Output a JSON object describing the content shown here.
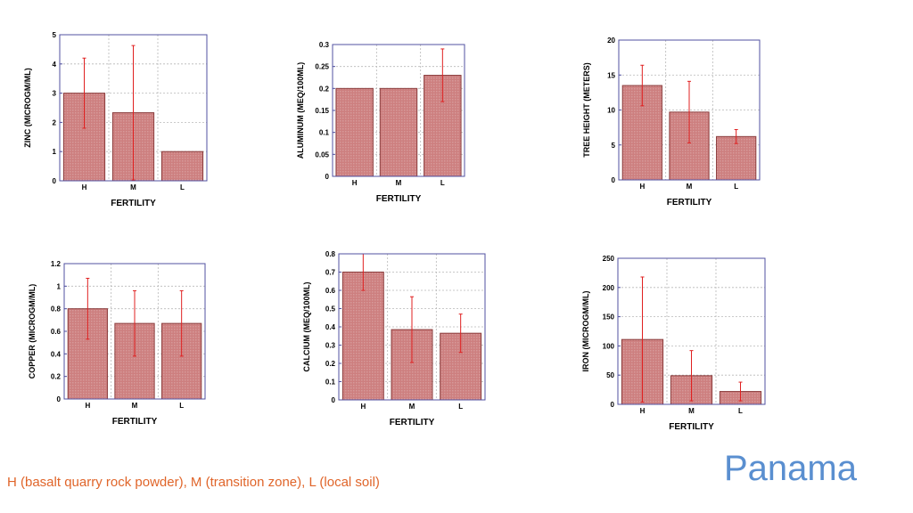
{
  "footnote": "H (basalt quarry rock powder), M (transition zone), L (local soil)",
  "brand": "Panama",
  "colors": {
    "bar": "#cd7f7f",
    "bar_stroke": "#8a3b3b",
    "error": "#e02020",
    "frame": "#5050a0",
    "grid": "#b8b8b8",
    "footnote": "#e0652a",
    "brand": "#5a8fd0"
  },
  "chart_data": [
    {
      "type": "bar",
      "categories": [
        "H",
        "M",
        "L"
      ],
      "values": [
        3.0,
        2.33,
        1.0
      ],
      "errors": [
        1.2,
        2.3,
        0.0
      ],
      "xlabel": "FERTILITY",
      "ylabel": "ZINC (MICROGM/ML)",
      "ylim": [
        0,
        5
      ],
      "yticks": [
        "0",
        "1",
        "2",
        "3",
        "4",
        "5"
      ],
      "grid": true
    },
    {
      "type": "bar",
      "categories": [
        "H",
        "M",
        "L"
      ],
      "values": [
        0.2,
        0.2,
        0.23
      ],
      "errors": [
        0.0,
        0.0,
        0.06
      ],
      "xlabel": "FERTILITY",
      "ylabel": "ALUMINUM (MEQ/100ML)",
      "ylim": [
        0,
        0.3
      ],
      "yticks": [
        "0",
        "0.05",
        "0.1",
        "0.15",
        "0.2",
        "0.25",
        "0.3"
      ],
      "grid": true
    },
    {
      "type": "bar",
      "categories": [
        "H",
        "M",
        "L"
      ],
      "values": [
        13.5,
        9.7,
        6.2
      ],
      "errors": [
        2.9,
        4.4,
        1.0
      ],
      "xlabel": "FERTILITY",
      "ylabel": "TREE HEIGHT (METERS)",
      "ylim": [
        0,
        20
      ],
      "yticks": [
        "0",
        "5",
        "10",
        "15",
        "20"
      ],
      "grid": true
    },
    {
      "type": "bar",
      "categories": [
        "H",
        "M",
        "L"
      ],
      "values": [
        0.8,
        0.67,
        0.67
      ],
      "errors": [
        0.27,
        0.29,
        0.29
      ],
      "xlabel": "FERTILITY",
      "ylabel": "COPPER (MICROGM/ML)",
      "ylim": [
        0,
        1.2
      ],
      "yticks": [
        "0",
        "0.2",
        "0.4",
        "0.6",
        "0.8",
        "1",
        "1.2"
      ],
      "grid": true
    },
    {
      "type": "bar",
      "categories": [
        "H",
        "M",
        "L"
      ],
      "values": [
        0.7,
        0.385,
        0.365
      ],
      "errors": [
        0.1,
        0.18,
        0.105
      ],
      "xlabel": "FERTILITY",
      "ylabel": "CALCIUM (MEQ/100ML)",
      "ylim": [
        0,
        0.8
      ],
      "yticks": [
        "0",
        "0.1",
        "0.2",
        "0.3",
        "0.4",
        "0.5",
        "0.6",
        "0.7",
        "0.8"
      ],
      "grid": true
    },
    {
      "type": "bar",
      "categories": [
        "H",
        "M",
        "L"
      ],
      "values": [
        111,
        49,
        22
      ],
      "errors": [
        107,
        43,
        16
      ],
      "xlabel": "FERTILITY",
      "ylabel": "IRON (MICROGM/ML)",
      "ylim": [
        0,
        250
      ],
      "yticks": [
        "0",
        "50",
        "100",
        "150",
        "200",
        "250"
      ],
      "grid": true
    }
  ]
}
